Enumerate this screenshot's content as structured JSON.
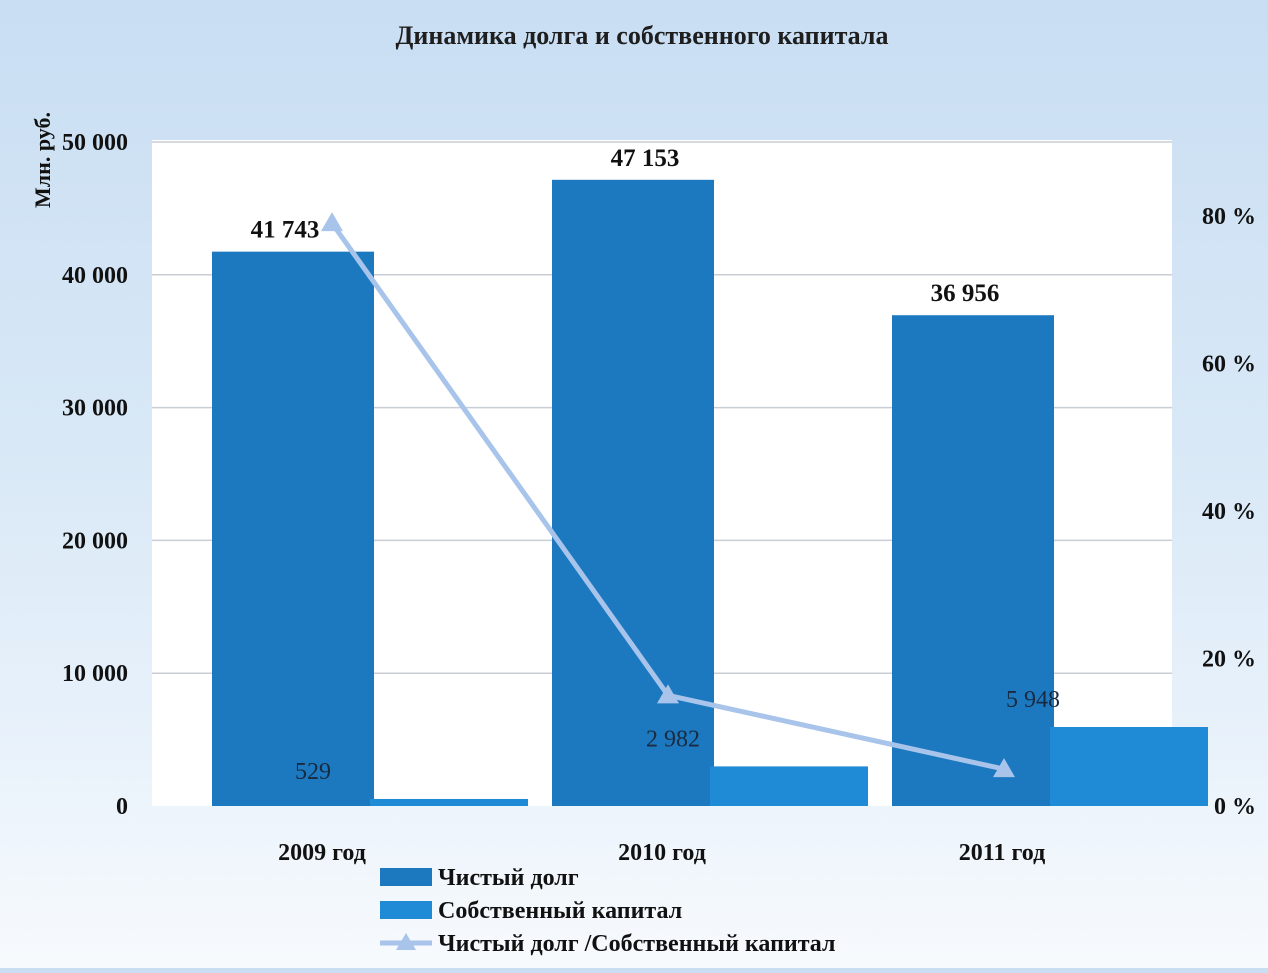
{
  "chart_data": {
    "type": "bar",
    "title": "Динамика долга и собственного капитала",
    "ylabel": "Млн. руб.",
    "categories": [
      "2009 год",
      "2010 год",
      "2011 год"
    ],
    "ylim": [
      0,
      50000
    ],
    "y_ticks": [
      "0",
      "10 000",
      "20 000",
      "30 000",
      "40 000",
      "50 000"
    ],
    "y2lim": [
      0,
      90
    ],
    "y2_ticks": [
      "0 %",
      "20 %",
      "40 %",
      "60 %",
      "80 %"
    ],
    "grid": true,
    "legend_position": "bottom",
    "series": [
      {
        "name": "Чистый долг",
        "type": "bar",
        "axis": "left",
        "color": "#1c79c0",
        "values": [
          41743,
          47153,
          36956
        ],
        "labels": [
          "41 743",
          "47 153",
          "36 956"
        ]
      },
      {
        "name": "Собственный капитал",
        "type": "bar",
        "axis": "left",
        "color": "#1f8ad6",
        "values": [
          529,
          2982,
          5948
        ],
        "labels": [
          "529",
          "2 982",
          "5 948"
        ]
      },
      {
        "name": "Чистый долг /Собственный капитал",
        "type": "line",
        "axis": "right",
        "color": "#a8c4ea",
        "marker": "triangle",
        "values": [
          79,
          15,
          5
        ]
      }
    ]
  }
}
